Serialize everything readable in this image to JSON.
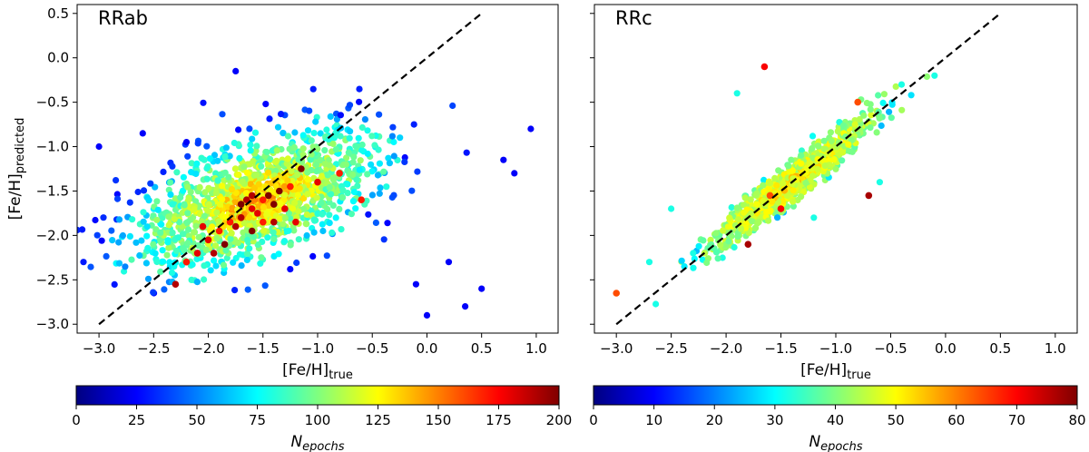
{
  "chart_data": [
    {
      "type": "scatter",
      "title": "RRab",
      "xlabel_main": "[Fe/H]",
      "xlabel_sub": "true",
      "ylabel_main": "[Fe/H]",
      "ylabel_sub": "predicted",
      "xlim": [
        -3.2,
        1.2
      ],
      "ylim": [
        -3.1,
        0.6
      ],
      "xticks": [
        -3.0,
        -2.5,
        -2.0,
        -1.5,
        -1.0,
        -0.5,
        0.0,
        0.5,
        1.0
      ],
      "xtick_labels": [
        "−3.0",
        "−2.5",
        "−2.0",
        "−1.5",
        "−1.0",
        "−0.5",
        "0.0",
        "0.5",
        "1.0"
      ],
      "yticks": [
        -3.0,
        -2.5,
        -2.0,
        -1.5,
        -1.0,
        -0.5,
        0.0,
        0.5
      ],
      "ytick_labels": [
        "−3.0",
        "−2.5",
        "−2.0",
        "−1.5",
        "−1.0",
        "−0.5",
        "0.0",
        "0.5"
      ],
      "identity_line": {
        "x": [
          -3.0,
          0.5
        ],
        "y": [
          -3.0,
          0.5
        ],
        "style": "dashed",
        "color": "#000000"
      },
      "point_cloud": {
        "center": [
          -1.55,
          -1.6
        ],
        "slope": 0.55,
        "sd_along": 0.62,
        "sd_across": 0.3,
        "count": 1400
      },
      "highlighted_points": [
        [
          -1.5,
          -1.6
        ],
        [
          -1.6,
          -1.7
        ],
        [
          -1.7,
          -1.8
        ],
        [
          -1.45,
          -1.55
        ],
        [
          -1.8,
          -1.85
        ],
        [
          -1.55,
          -1.75
        ],
        [
          -1.65,
          -1.6
        ],
        [
          -1.4,
          -1.65
        ],
        [
          -1.9,
          -1.95
        ],
        [
          -2.0,
          -2.05
        ],
        [
          -1.75,
          -1.9
        ],
        [
          -1.35,
          -1.5
        ],
        [
          -1.5,
          -1.85
        ],
        [
          -2.1,
          -2.2
        ],
        [
          -1.6,
          -1.55
        ],
        [
          -1.85,
          -2.1
        ],
        [
          -2.2,
          -2.3
        ],
        [
          -1.3,
          -1.7
        ],
        [
          -1.95,
          -2.2
        ],
        [
          -1.7,
          -1.65
        ],
        [
          -1.25,
          -1.45
        ],
        [
          -2.05,
          -1.9
        ],
        [
          -1.4,
          -1.85
        ],
        [
          -1.6,
          -1.95
        ],
        [
          -0.8,
          -1.3
        ],
        [
          -1.0,
          -1.4
        ],
        [
          -2.3,
          -2.55
        ],
        [
          -1.15,
          -1.25
        ],
        [
          -0.6,
          -1.6
        ],
        [
          -1.2,
          -1.85
        ]
      ],
      "outlier_points": [
        [
          -3.0,
          -1.0
        ],
        [
          -2.6,
          -0.85
        ],
        [
          -2.2,
          -0.95
        ],
        [
          -1.75,
          -0.15
        ],
        [
          0.0,
          -2.9
        ],
        [
          0.35,
          -2.8
        ],
        [
          0.8,
          -1.3
        ],
        [
          0.95,
          -0.8
        ],
        [
          0.7,
          -1.15
        ],
        [
          -0.1,
          -2.55
        ],
        [
          0.2,
          -2.3
        ],
        [
          0.5,
          -2.6
        ]
      ],
      "colorbar": {
        "label_main": "N",
        "label_sub": "epochs",
        "range": [
          0,
          200
        ],
        "ticks": [
          0,
          25,
          50,
          75,
          100,
          125,
          150,
          175,
          200
        ],
        "tick_labels": [
          "0",
          "25",
          "50",
          "75",
          "100",
          "125",
          "150",
          "175",
          "200"
        ],
        "colormap": "jet"
      }
    },
    {
      "type": "scatter",
      "title": "RRc",
      "xlabel_main": "[Fe/H]",
      "xlabel_sub": "true",
      "xlim": [
        -3.2,
        1.2
      ],
      "ylim": [
        -3.1,
        0.6
      ],
      "xticks": [
        -3.0,
        -2.5,
        -2.0,
        -1.5,
        -1.0,
        -0.5,
        0.0,
        0.5,
        1.0
      ],
      "xtick_labels": [
        "−3.0",
        "−2.5",
        "−2.0",
        "−1.5",
        "−1.0",
        "−0.5",
        "0.0",
        "0.5",
        "1.0"
      ],
      "yticks": [
        -3.0,
        -2.5,
        -2.0,
        -1.5,
        -1.0,
        -0.5,
        0.0,
        0.5
      ],
      "identity_line": {
        "x": [
          -3.0,
          0.5
        ],
        "y": [
          -3.0,
          0.5
        ],
        "style": "dashed",
        "color": "#000000"
      },
      "point_cloud": {
        "center": [
          -1.4,
          -1.4
        ],
        "slope": 1.0,
        "sd_along": 0.5,
        "sd_across": 0.08,
        "count": 900
      },
      "highlighted_points": [
        [
          -3.0,
          -2.65
        ],
        [
          -1.65,
          -0.1
        ],
        [
          -0.7,
          -1.55
        ],
        [
          -1.6,
          -1.55
        ],
        [
          -1.5,
          -1.7
        ],
        [
          -1.8,
          -2.1
        ],
        [
          -0.8,
          -0.5
        ]
      ],
      "outlier_points": [
        [
          -2.5,
          -1.7
        ],
        [
          -2.3,
          -2.2
        ],
        [
          -1.9,
          -0.4
        ],
        [
          -0.4,
          -0.3
        ],
        [
          -0.1,
          -0.2
        ],
        [
          -2.7,
          -2.3
        ],
        [
          -1.2,
          -1.8
        ],
        [
          -0.6,
          -1.4
        ]
      ],
      "colorbar": {
        "label_main": "N",
        "label_sub": "epochs",
        "range": [
          0,
          80
        ],
        "ticks": [
          0,
          10,
          20,
          30,
          40,
          50,
          60,
          70,
          80
        ],
        "tick_labels": [
          "0",
          "10",
          "20",
          "30",
          "40",
          "50",
          "60",
          "70",
          "80"
        ],
        "colormap": "jet"
      }
    }
  ]
}
